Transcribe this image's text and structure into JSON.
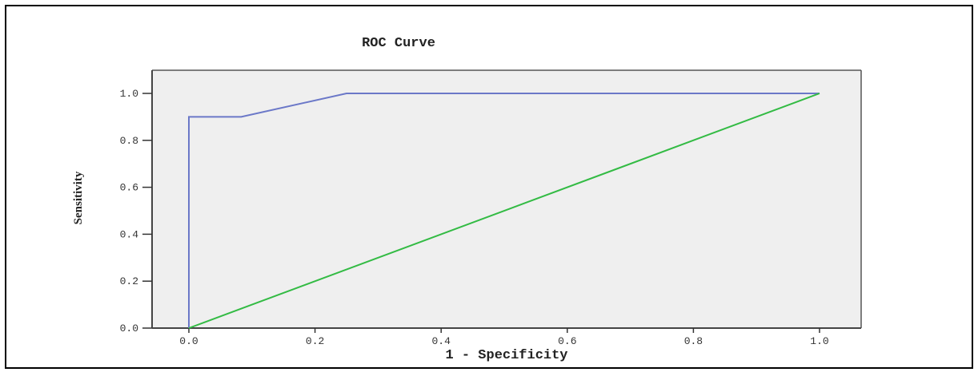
{
  "chart_data": {
    "type": "line",
    "title": "ROC Curve",
    "xlabel": "1 - Specificity",
    "ylabel": "Sensitivity",
    "xlim": [
      0,
      1
    ],
    "ylim": [
      0,
      1
    ],
    "x_ticks": [
      "0.0",
      "0.2",
      "0.4",
      "0.6",
      "0.8",
      "1.0"
    ],
    "y_ticks": [
      "0.0",
      "0.2",
      "0.4",
      "0.6",
      "0.8",
      "1.0"
    ],
    "grid": false,
    "series": [
      {
        "color": "#6b78c8",
        "x": [
          0.0,
          0.0,
          0.083,
          0.25,
          1.0
        ],
        "y": [
          0.0,
          0.9,
          0.9,
          1.0,
          1.0
        ]
      },
      {
        "color": "#33bb44",
        "x": [
          0.0,
          1.0
        ],
        "y": [
          0.0,
          1.0
        ]
      }
    ],
    "plot_background": "#efefef"
  }
}
